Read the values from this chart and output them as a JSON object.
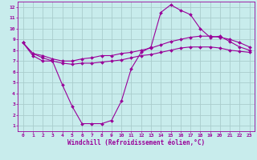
{
  "title": "",
  "xlabel": "Windchill (Refroidissement éolien,°C)",
  "ylabel": "",
  "bg_color": "#c8ecec",
  "line_color": "#990099",
  "grid_color": "#aacccc",
  "xlim": [
    -0.5,
    23.5
  ],
  "ylim": [
    0.5,
    12.5
  ],
  "xticks": [
    0,
    1,
    2,
    3,
    4,
    5,
    6,
    7,
    8,
    9,
    10,
    11,
    12,
    13,
    14,
    15,
    16,
    17,
    18,
    19,
    20,
    21,
    22,
    23
  ],
  "yticks": [
    1,
    2,
    3,
    4,
    5,
    6,
    7,
    8,
    9,
    10,
    11,
    12
  ],
  "line1_x": [
    0,
    1,
    2,
    3,
    4,
    5,
    6,
    7,
    8,
    9,
    10,
    11,
    12,
    13,
    14,
    15,
    16,
    17,
    18,
    19,
    20,
    21,
    22,
    23
  ],
  "line1_y": [
    8.7,
    7.5,
    7.0,
    7.0,
    4.8,
    2.8,
    1.2,
    1.2,
    1.2,
    1.5,
    3.3,
    6.3,
    7.8,
    8.3,
    11.5,
    12.2,
    11.7,
    11.3,
    10.0,
    9.2,
    9.3,
    8.8,
    8.3,
    8.0
  ],
  "line2_x": [
    0,
    1,
    2,
    3,
    4,
    5,
    6,
    7,
    8,
    9,
    10,
    11,
    12,
    13,
    14,
    15,
    16,
    17,
    18,
    19,
    20,
    21,
    22,
    23
  ],
  "line2_y": [
    8.7,
    7.7,
    7.5,
    7.2,
    7.0,
    7.0,
    7.2,
    7.3,
    7.5,
    7.5,
    7.7,
    7.8,
    8.0,
    8.2,
    8.5,
    8.8,
    9.0,
    9.2,
    9.3,
    9.3,
    9.2,
    9.0,
    8.7,
    8.3
  ],
  "line3_x": [
    0,
    1,
    2,
    3,
    4,
    5,
    6,
    7,
    8,
    9,
    10,
    11,
    12,
    13,
    14,
    15,
    16,
    17,
    18,
    19,
    20,
    21,
    22,
    23
  ],
  "line3_y": [
    8.7,
    7.7,
    7.3,
    7.0,
    6.8,
    6.7,
    6.8,
    6.8,
    6.9,
    7.0,
    7.1,
    7.3,
    7.5,
    7.6,
    7.8,
    8.0,
    8.2,
    8.3,
    8.3,
    8.3,
    8.2,
    8.0,
    7.9,
    7.8
  ],
  "tick_fontsize": 4.5,
  "xlabel_fontsize": 5.5,
  "marker_size": 2.0,
  "line_width": 0.8
}
